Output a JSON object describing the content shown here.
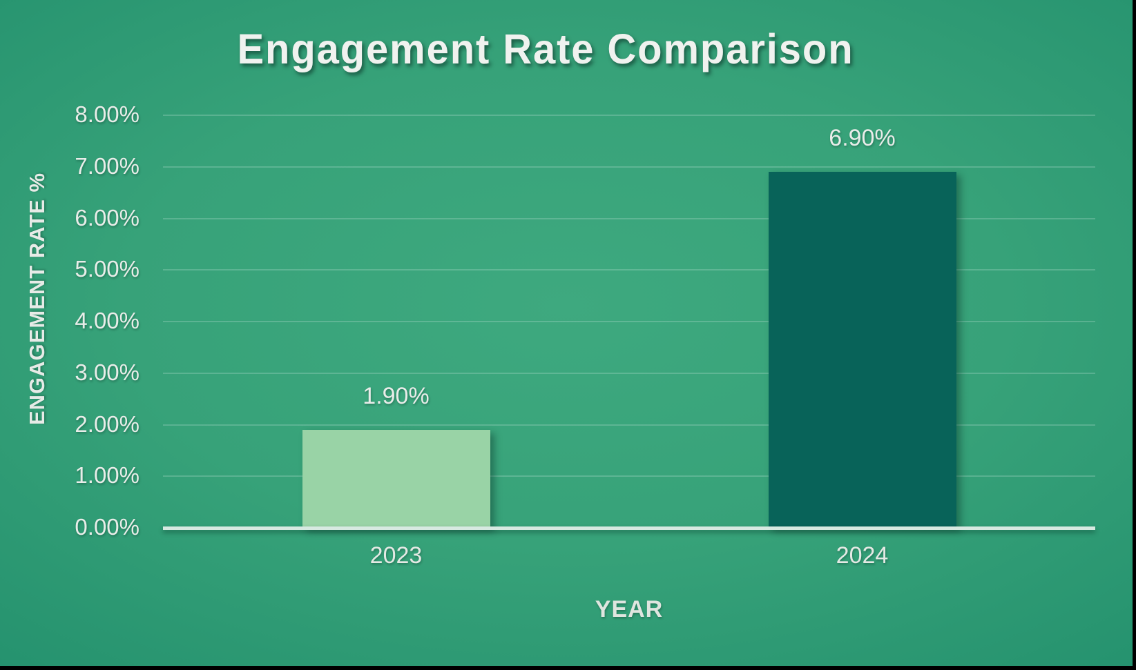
{
  "chart_data": {
    "type": "bar",
    "title": "Engagement Rate Comparison",
    "xlabel": "YEAR",
    "ylabel": "ENGAGEMENT RATE %",
    "categories": [
      "2023",
      "2024"
    ],
    "values": [
      1.9,
      6.9
    ],
    "data_labels": [
      "1.90%",
      "6.90%"
    ],
    "bar_colors": [
      "#99d3a6",
      "#086359"
    ],
    "y_ticks": [
      {
        "value": 0,
        "label": "0.00%"
      },
      {
        "value": 1,
        "label": "1.00%"
      },
      {
        "value": 2,
        "label": "2.00%"
      },
      {
        "value": 3,
        "label": "3.00%"
      },
      {
        "value": 4,
        "label": "4.00%"
      },
      {
        "value": 5,
        "label": "5.00%"
      },
      {
        "value": 6,
        "label": "6.00%"
      },
      {
        "value": 7,
        "label": "7.00%"
      },
      {
        "value": 8,
        "label": "8.00%"
      }
    ],
    "ylim": [
      0,
      8
    ],
    "grid": true,
    "legend": false,
    "colors": {
      "background_center": "#3ea97f",
      "background_edge": "#0a7466",
      "text": "#e9ede9",
      "axis_line": "#d7e9e1"
    }
  }
}
